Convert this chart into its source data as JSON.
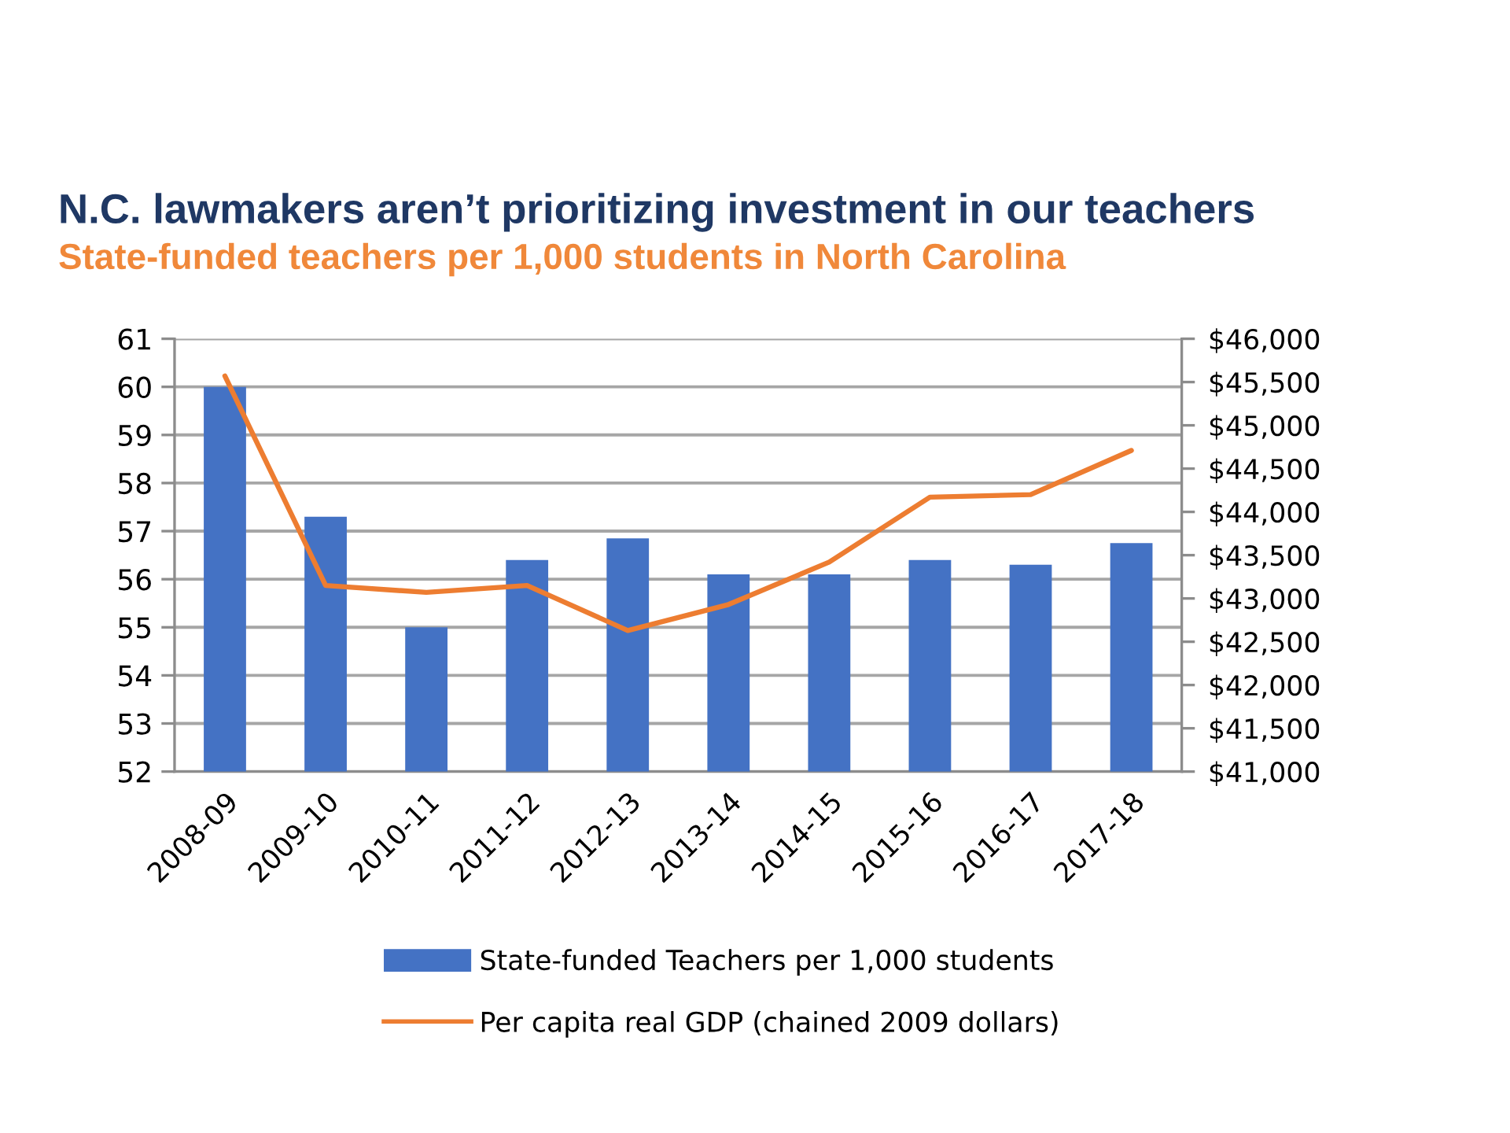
{
  "chart_data": {
    "type": "bar",
    "title": "N.C. lawmakers aren’t prioritizing investment in our teachers",
    "subtitle": "State-funded teachers per 1,000 students in North Carolina",
    "categories": [
      "2008-09",
      "2009-10",
      "2010-11",
      "2011-12",
      "2012-13",
      "2013-14",
      "2014-15",
      "2015-16",
      "2016-17",
      "2017-18"
    ],
    "series": [
      {
        "name": "State-funded Teachers per 1,000 students",
        "color": "#4472c4",
        "values": [
          60.0,
          57.3,
          55.0,
          56.4,
          56.85,
          56.1,
          56.1,
          56.4,
          56.3,
          56.75
        ]
      },
      {
        "name": "Per capita real GDP (chained 2009 dollars)",
        "type": "line",
        "axis": "y2",
        "color": "#ed7d31",
        "values": [
          45570,
          43150,
          43070,
          43150,
          42630,
          42930,
          43420,
          44170,
          44200,
          44710
        ]
      }
    ],
    "ylim": [
      52,
      61
    ],
    "yticks": [
      52,
      53,
      54,
      55,
      56,
      57,
      58,
      59,
      60,
      61
    ],
    "y2lim": [
      41000,
      46000
    ],
    "y2ticks": [
      {
        "value": 41000,
        "label": "$41,000"
      },
      {
        "value": 41500,
        "label": "$41,500"
      },
      {
        "value": 42000,
        "label": "$42,000"
      },
      {
        "value": 42500,
        "label": "$42,500"
      },
      {
        "value": 43000,
        "label": "$43,000"
      },
      {
        "value": 43500,
        "label": "$43,500"
      },
      {
        "value": 44000,
        "label": "$44,000"
      },
      {
        "value": 44500,
        "label": "$44,500"
      },
      {
        "value": 45000,
        "label": "$45,000"
      },
      {
        "value": 45500,
        "label": "$45,500"
      },
      {
        "value": 46000,
        "label": "$46,000"
      }
    ],
    "grid": "y",
    "legend": "bottom"
  }
}
